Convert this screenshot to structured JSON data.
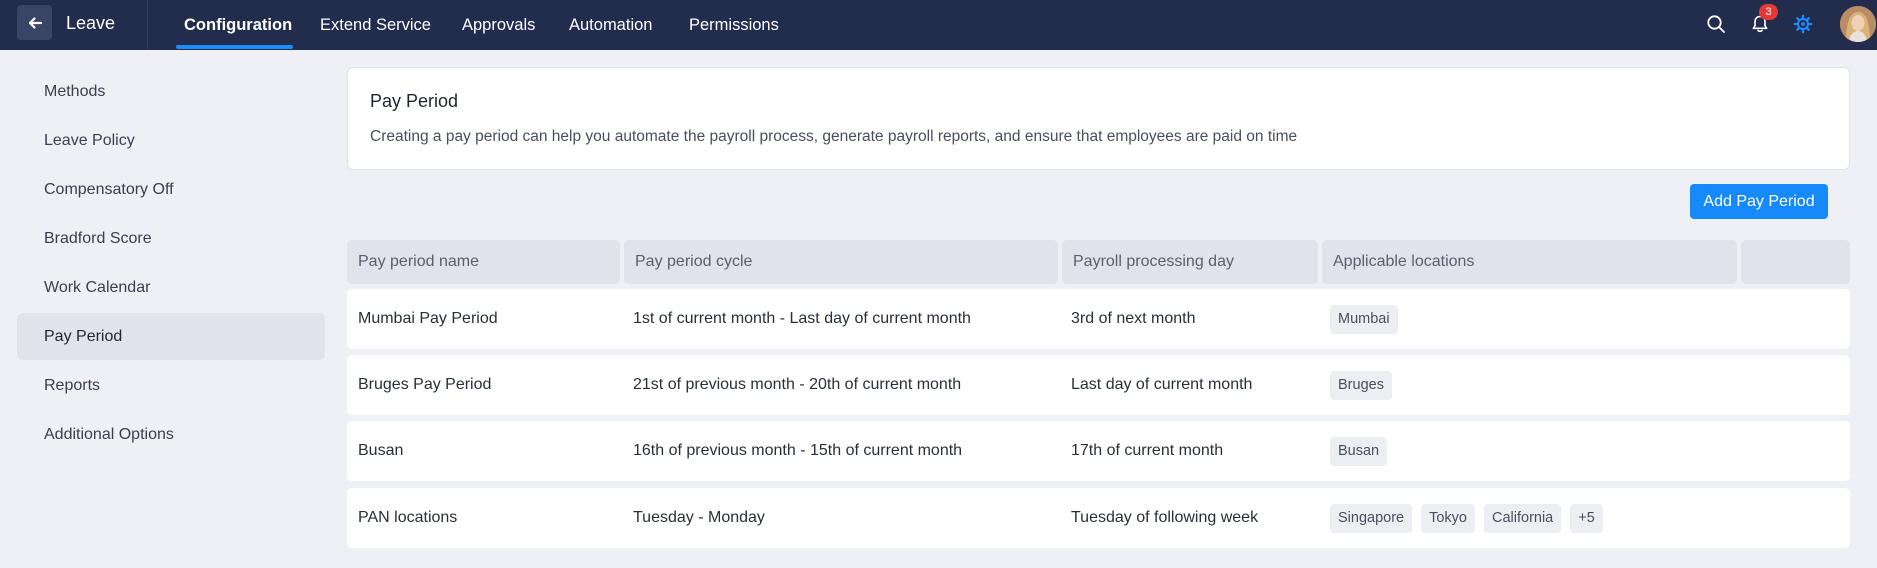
{
  "header": {
    "app_title": "Leave",
    "back_icon": "arrow-left-icon",
    "tabs": [
      {
        "label": "Configuration",
        "active": true
      },
      {
        "label": "Extend Service",
        "active": false
      },
      {
        "label": "Approvals",
        "active": false
      },
      {
        "label": "Automation",
        "active": false
      },
      {
        "label": "Permissions",
        "active": false
      }
    ],
    "notification_count": "3",
    "icons": [
      "search-icon",
      "bell-icon",
      "gear-icon",
      "avatar"
    ],
    "colors": {
      "bar": "#222d4e",
      "accent": "#1a8cff",
      "badge": "#e53935"
    }
  },
  "sidebar": {
    "items": [
      {
        "label": "Methods",
        "active": false
      },
      {
        "label": "Leave Policy",
        "active": false
      },
      {
        "label": "Compensatory Off",
        "active": false
      },
      {
        "label": "Bradford Score",
        "active": false
      },
      {
        "label": "Work Calendar",
        "active": false
      },
      {
        "label": "Pay Period",
        "active": true
      },
      {
        "label": "Reports",
        "active": false
      },
      {
        "label": "Additional Options",
        "active": false
      }
    ]
  },
  "main": {
    "card_title": "Pay Period",
    "card_description": "Creating a pay period can help you automate the payroll process, generate payroll reports, and ensure that employees are paid on time",
    "add_button_label": "Add Pay Period",
    "table": {
      "headers": [
        "Pay period name",
        "Pay period cycle",
        "Payroll processing day",
        "Applicable locations",
        ""
      ],
      "rows": [
        {
          "name": "Mumbai Pay Period",
          "cycle": "1st of current month - Last day of current month",
          "processing_day": "3rd of next month",
          "locations": [
            "Mumbai"
          ]
        },
        {
          "name": "Bruges Pay Period",
          "cycle": "21st of previous month - 20th of current month",
          "processing_day": "Last day of current month",
          "locations": [
            "Bruges"
          ]
        },
        {
          "name": "Busan",
          "cycle": "16th of previous month - 15th of current month",
          "processing_day": "17th of current month",
          "locations": [
            "Busan"
          ]
        },
        {
          "name": "PAN locations",
          "cycle": "Tuesday - Monday",
          "processing_day": "Tuesday of following week",
          "locations": [
            "Singapore",
            "Tokyo",
            "California",
            "+5"
          ]
        }
      ]
    }
  }
}
